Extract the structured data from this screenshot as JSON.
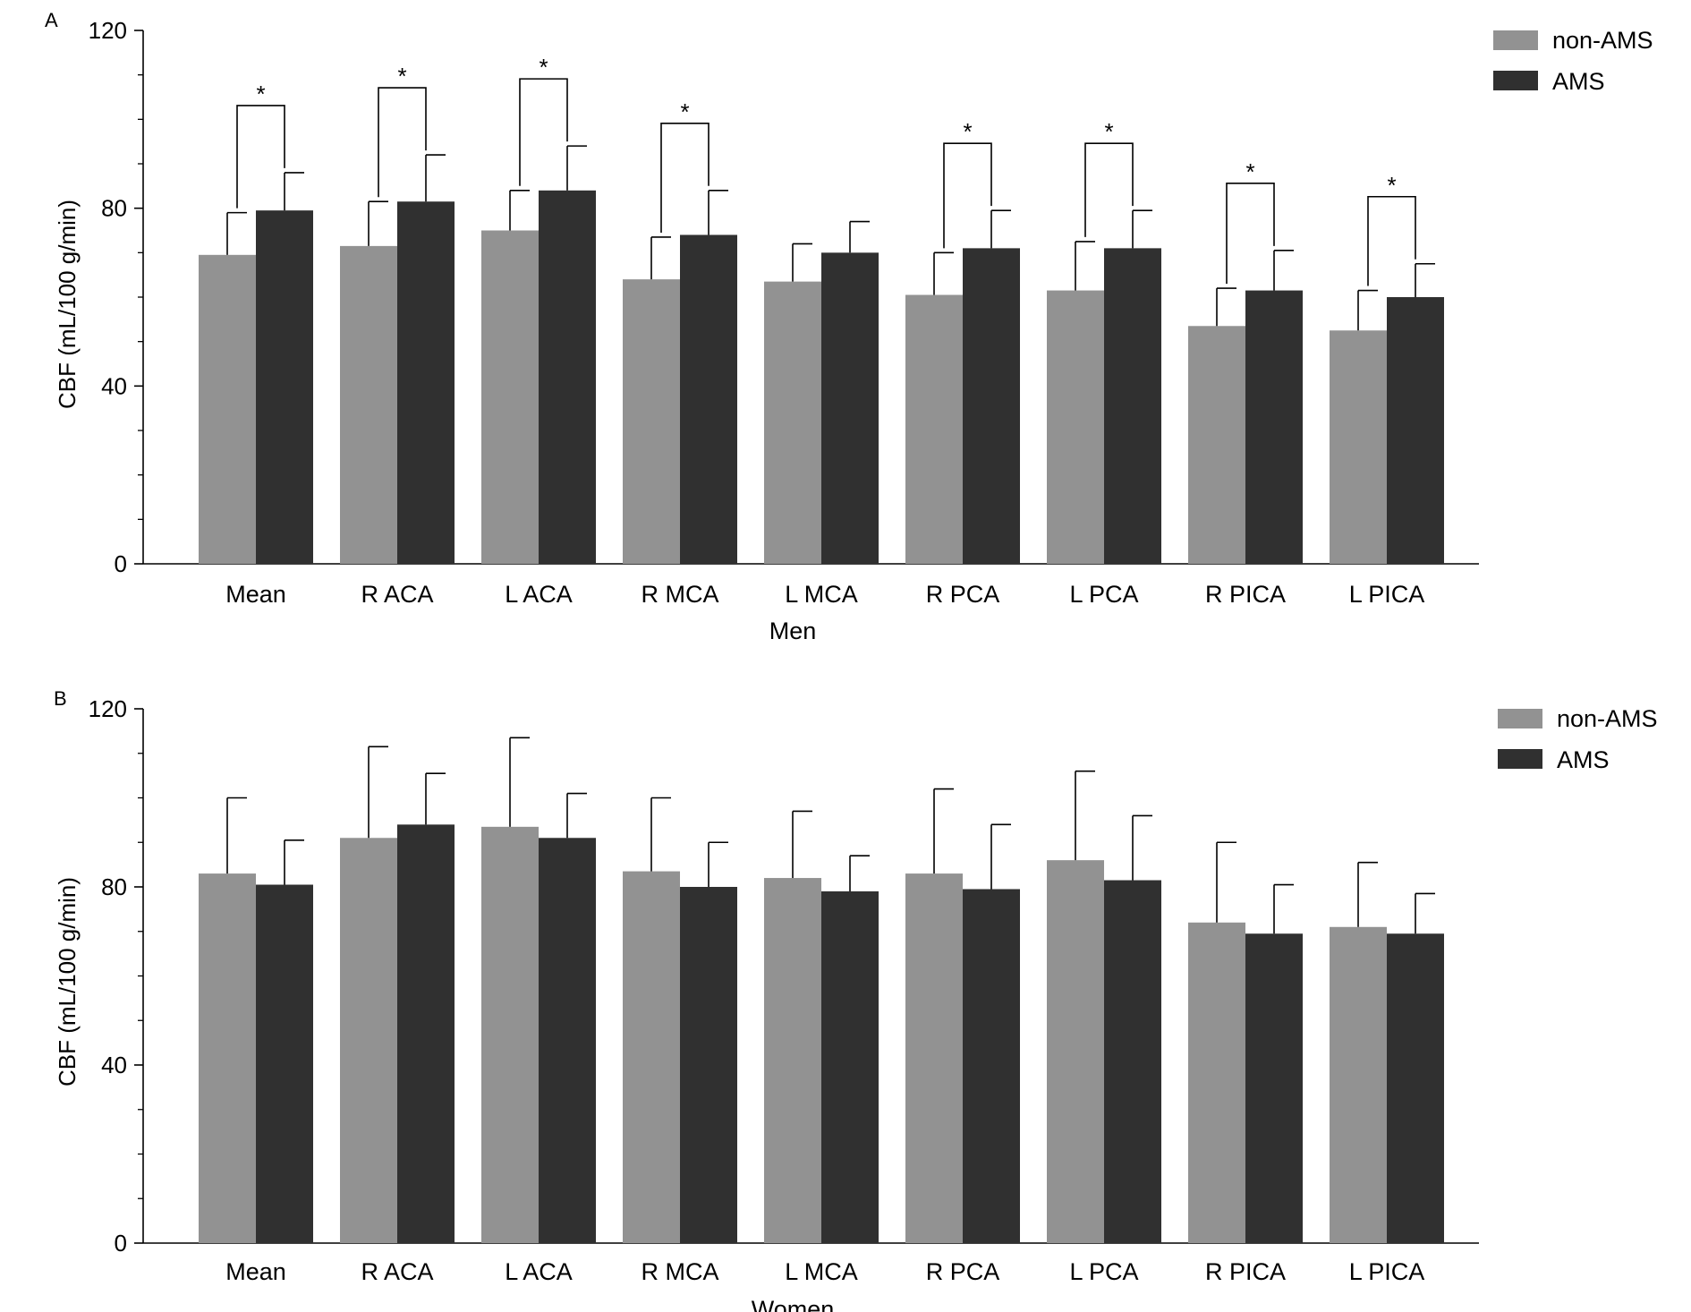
{
  "chart_data": [
    {
      "panel_label": "A",
      "type": "bar",
      "categories": [
        "Mean",
        "R ACA",
        "L ACA",
        "R MCA",
        "L MCA",
        "R PCA",
        "L PCA",
        "R PICA",
        "L PICA"
      ],
      "series": [
        {
          "name": "non-AMS",
          "color": "#929292",
          "values": [
            69.5,
            71.5,
            75,
            64,
            63.5,
            60.5,
            61.5,
            53.5,
            52.5
          ],
          "error": [
            9.5,
            10,
            9,
            9.5,
            8.5,
            9.5,
            11,
            8.5,
            9
          ]
        },
        {
          "name": "AMS",
          "color": "#303030",
          "values": [
            79.5,
            81.5,
            84,
            74,
            70,
            71,
            71,
            61.5,
            60
          ],
          "error": [
            8.5,
            10.5,
            10,
            10,
            7,
            8.5,
            8.5,
            9,
            7.5
          ]
        }
      ],
      "significance": [
        "*",
        "*",
        "*",
        "*",
        "",
        "*",
        "*",
        "*",
        "*"
      ],
      "xlabel": "Men",
      "ylabel": "CBF (mL/100 g/min)",
      "ylim": [
        0,
        120
      ],
      "yticks": [
        "0",
        "40",
        "80",
        "120"
      ],
      "grid": false,
      "legend": "top-right"
    },
    {
      "panel_label": "B",
      "type": "bar",
      "categories": [
        "Mean",
        "R ACA",
        "L ACA",
        "R MCA",
        "L MCA",
        "R PCA",
        "L PCA",
        "R PICA",
        "L PICA"
      ],
      "series": [
        {
          "name": "non-AMS",
          "color": "#929292",
          "values": [
            83,
            91,
            93.5,
            83.5,
            82,
            83,
            86,
            72,
            71
          ],
          "error": [
            17,
            20.5,
            20,
            16.5,
            15,
            19,
            20,
            18,
            14.5
          ]
        },
        {
          "name": "AMS",
          "color": "#303030",
          "values": [
            80.5,
            94,
            91,
            80,
            79,
            79.5,
            81.5,
            69.5,
            69.5
          ],
          "error": [
            10,
            11.5,
            10,
            10,
            8,
            14.5,
            14.5,
            11,
            9
          ]
        }
      ],
      "significance": [
        "",
        "",
        "",
        "",
        "",
        "",
        "",
        "",
        ""
      ],
      "xlabel": "Women",
      "ylabel": "CBF (mL/100 g/min)",
      "ylim": [
        0,
        120
      ],
      "yticks": [
        "0",
        "40",
        "80",
        "120"
      ],
      "grid": false,
      "legend": "top-right"
    }
  ]
}
